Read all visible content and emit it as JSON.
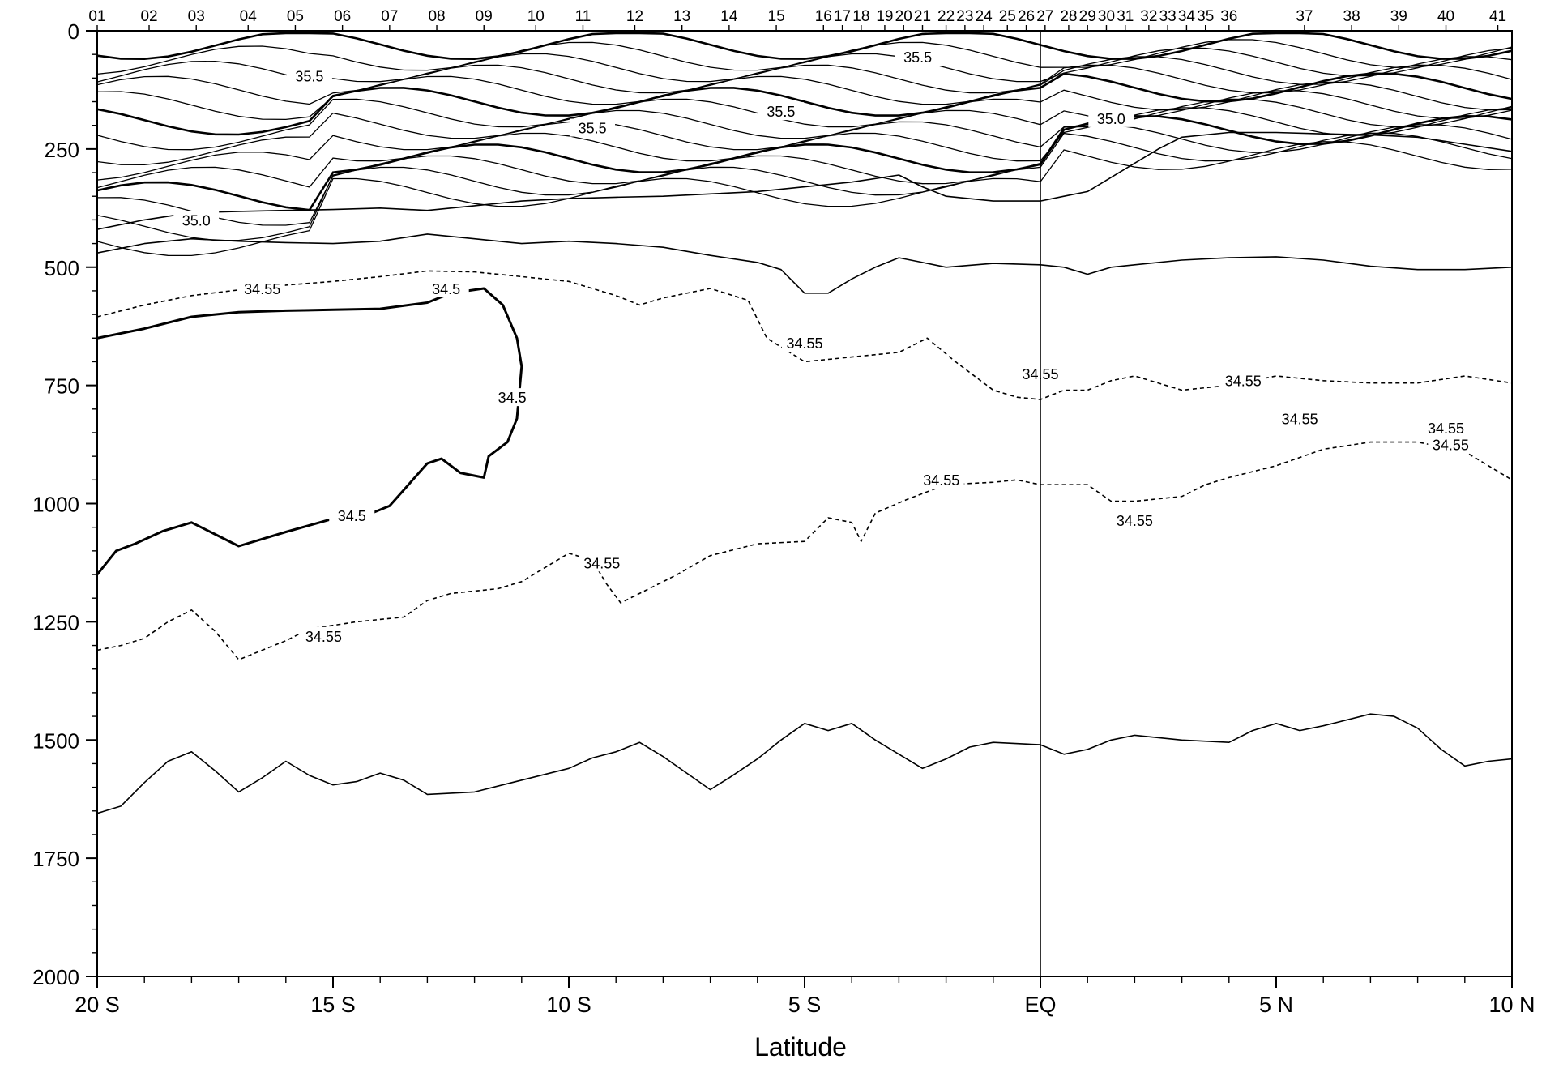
{
  "chart_data": {
    "type": "contour",
    "xlabel": "Latitude",
    "ylabel": "",
    "xlim": [
      -20,
      10
    ],
    "ylim": [
      2000,
      0
    ],
    "x_ticks": [
      {
        "value": -20,
        "label": "20 S"
      },
      {
        "value": -15,
        "label": "15 S"
      },
      {
        "value": -10,
        "label": "10 S"
      },
      {
        "value": -5,
        "label": "5 S"
      },
      {
        "value": 0,
        "label": "EQ"
      },
      {
        "value": 5,
        "label": "5 N"
      },
      {
        "value": 10,
        "label": "10 N"
      }
    ],
    "y_ticks": [
      0,
      250,
      500,
      750,
      1000,
      1250,
      1500,
      1750,
      2000
    ],
    "stations": [
      {
        "label": "01",
        "lat": -20.0
      },
      {
        "label": "02",
        "lat": -18.9
      },
      {
        "label": "03",
        "lat": -17.9
      },
      {
        "label": "04",
        "lat": -16.8
      },
      {
        "label": "05",
        "lat": -15.8
      },
      {
        "label": "06",
        "lat": -14.8
      },
      {
        "label": "07",
        "lat": -13.8
      },
      {
        "label": "08",
        "lat": -12.8
      },
      {
        "label": "09",
        "lat": -11.8
      },
      {
        "label": "10",
        "lat": -10.7
      },
      {
        "label": "11",
        "lat": -9.7
      },
      {
        "label": "12",
        "lat": -8.6
      },
      {
        "label": "13",
        "lat": -7.6
      },
      {
        "label": "14",
        "lat": -6.6
      },
      {
        "label": "15",
        "lat": -5.6
      },
      {
        "label": "16",
        "lat": -4.6
      },
      {
        "label": "17",
        "lat": -4.2
      },
      {
        "label": "18",
        "lat": -3.8
      },
      {
        "label": "19",
        "lat": -3.3
      },
      {
        "label": "20",
        "lat": -2.9
      },
      {
        "label": "21",
        "lat": -2.5
      },
      {
        "label": "22",
        "lat": -2.0
      },
      {
        "label": "23",
        "lat": -1.6
      },
      {
        "label": "24",
        "lat": -1.2
      },
      {
        "label": "25",
        "lat": -0.7
      },
      {
        "label": "26",
        "lat": -0.3
      },
      {
        "label": "27",
        "lat": 0.1
      },
      {
        "label": "28",
        "lat": 0.6
      },
      {
        "label": "29",
        "lat": 1.0
      },
      {
        "label": "30",
        "lat": 1.4
      },
      {
        "label": "31",
        "lat": 1.8
      },
      {
        "label": "32",
        "lat": 2.3
      },
      {
        "label": "33",
        "lat": 2.7
      },
      {
        "label": "34",
        "lat": 3.1
      },
      {
        "label": "35",
        "lat": 3.5
      },
      {
        "label": "36",
        "lat": 4.0
      },
      {
        "label": "37",
        "lat": 5.6
      },
      {
        "label": "38",
        "lat": 6.6
      },
      {
        "label": "39",
        "lat": 7.6
      },
      {
        "label": "40",
        "lat": 8.6
      },
      {
        "label": "41",
        "lat": 9.7
      }
    ],
    "contours": [
      {
        "level": "34.5",
        "style": "heavy",
        "points": [
          [
            -20,
            650
          ],
          [
            -19,
            630
          ],
          [
            -18,
            605
          ],
          [
            -17,
            595
          ],
          [
            -16,
            592
          ],
          [
            -15,
            590
          ],
          [
            -14,
            588
          ],
          [
            -13,
            575
          ],
          [
            -12.5,
            555
          ],
          [
            -11.8,
            545
          ],
          [
            -11.4,
            580
          ],
          [
            -11.1,
            650
          ],
          [
            -11,
            710
          ],
          [
            -11.1,
            820
          ],
          [
            -11.3,
            870
          ],
          [
            -11.7,
            900
          ],
          [
            -11.8,
            945
          ],
          [
            -12.3,
            935
          ],
          [
            -12.7,
            905
          ],
          [
            -13,
            915
          ],
          [
            -13.4,
            960
          ],
          [
            -13.8,
            1005
          ],
          [
            -14.3,
            1025
          ],
          [
            -15,
            1032
          ],
          [
            -16,
            1060
          ],
          [
            -17,
            1090
          ],
          [
            -17.5,
            1065
          ],
          [
            -18,
            1040
          ],
          [
            -18.6,
            1058
          ],
          [
            -19.2,
            1085
          ],
          [
            -19.6,
            1100
          ],
          [
            -20,
            1150
          ]
        ]
      },
      {
        "level": "34.55",
        "style": "dashed",
        "points": [
          [
            -20,
            605
          ],
          [
            -19,
            580
          ],
          [
            -18,
            560
          ],
          [
            -17,
            548
          ],
          [
            -16,
            538
          ],
          [
            -15,
            530
          ],
          [
            -14,
            520
          ],
          [
            -13,
            508
          ],
          [
            -12,
            510
          ],
          [
            -11,
            520
          ],
          [
            -10,
            530
          ],
          [
            -9,
            560
          ],
          [
            -8.5,
            580
          ],
          [
            -8,
            565
          ],
          [
            -7,
            545
          ],
          [
            -6.2,
            570
          ],
          [
            -5.8,
            650
          ],
          [
            -5,
            700
          ],
          [
            -4,
            690
          ],
          [
            -3,
            680
          ],
          [
            -2.4,
            650
          ],
          [
            -1.8,
            700
          ],
          [
            -1,
            760
          ],
          [
            -0.5,
            775
          ],
          [
            0,
            780
          ],
          [
            0.5,
            760
          ],
          [
            1,
            760
          ],
          [
            1.5,
            740
          ],
          [
            2,
            730
          ],
          [
            3,
            760
          ],
          [
            4,
            750
          ],
          [
            5,
            730
          ],
          [
            6,
            740
          ],
          [
            7,
            745
          ],
          [
            8,
            745
          ],
          [
            9,
            730
          ],
          [
            10,
            745
          ]
        ]
      },
      {
        "level": "34.55",
        "style": "dashed",
        "points": [
          [
            -20,
            1310
          ],
          [
            -19.5,
            1300
          ],
          [
            -19,
            1285
          ],
          [
            -18.5,
            1250
          ],
          [
            -18,
            1225
          ],
          [
            -17.5,
            1270
          ],
          [
            -17,
            1330
          ],
          [
            -16.5,
            1310
          ],
          [
            -16,
            1290
          ],
          [
            -15.5,
            1265
          ],
          [
            -14.5,
            1250
          ],
          [
            -13.5,
            1240
          ],
          [
            -13,
            1205
          ],
          [
            -12.5,
            1190
          ],
          [
            -11.5,
            1180
          ],
          [
            -11,
            1165
          ],
          [
            -10.5,
            1135
          ],
          [
            -10,
            1105
          ],
          [
            -9.5,
            1120
          ],
          [
            -9.2,
            1170
          ],
          [
            -8.9,
            1210
          ],
          [
            -8.5,
            1190
          ],
          [
            -7.7,
            1150
          ],
          [
            -7,
            1110
          ],
          [
            -6,
            1085
          ],
          [
            -5,
            1080
          ],
          [
            -4.5,
            1030
          ],
          [
            -4,
            1040
          ],
          [
            -3.8,
            1080
          ],
          [
            -3.5,
            1020
          ],
          [
            -2.8,
            990
          ],
          [
            -2,
            960
          ],
          [
            -1,
            955
          ],
          [
            -0.5,
            950
          ],
          [
            0,
            960
          ],
          [
            0.5,
            960
          ],
          [
            1,
            960
          ],
          [
            1.5,
            995
          ],
          [
            2,
            995
          ],
          [
            3,
            985
          ],
          [
            3.5,
            960
          ],
          [
            4,
            945
          ],
          [
            5,
            920
          ],
          [
            6,
            885
          ],
          [
            7,
            870
          ],
          [
            8,
            870
          ],
          [
            9,
            890
          ],
          [
            10,
            950
          ]
        ]
      },
      {
        "level": "",
        "style": "thin",
        "points": [
          [
            -20,
            1655
          ],
          [
            -19.5,
            1640
          ],
          [
            -19,
            1590
          ],
          [
            -18.5,
            1545
          ],
          [
            -18,
            1525
          ],
          [
            -17.5,
            1565
          ],
          [
            -17,
            1610
          ],
          [
            -16.5,
            1580
          ],
          [
            -16,
            1545
          ],
          [
            -15.5,
            1575
          ],
          [
            -15,
            1595
          ],
          [
            -14.5,
            1588
          ],
          [
            -14,
            1570
          ],
          [
            -13.5,
            1585
          ],
          [
            -13,
            1615
          ],
          [
            -12,
            1610
          ],
          [
            -11,
            1585
          ],
          [
            -10,
            1560
          ],
          [
            -9.5,
            1538
          ],
          [
            -9,
            1525
          ],
          [
            -8.5,
            1505
          ],
          [
            -8,
            1535
          ],
          [
            -7.5,
            1570
          ],
          [
            -7,
            1605
          ],
          [
            -6.6,
            1580
          ],
          [
            -6,
            1540
          ],
          [
            -5.5,
            1500
          ],
          [
            -5,
            1465
          ],
          [
            -4.5,
            1480
          ],
          [
            -4,
            1465
          ],
          [
            -3.5,
            1500
          ],
          [
            -3,
            1530
          ],
          [
            -2.5,
            1560
          ],
          [
            -2,
            1540
          ],
          [
            -1.5,
            1515
          ],
          [
            -1,
            1505
          ],
          [
            0,
            1510
          ],
          [
            0.5,
            1530
          ],
          [
            1,
            1520
          ],
          [
            1.5,
            1500
          ],
          [
            2,
            1490
          ],
          [
            3,
            1500
          ],
          [
            4,
            1505
          ],
          [
            4.5,
            1480
          ],
          [
            5,
            1465
          ],
          [
            5.5,
            1480
          ],
          [
            6,
            1470
          ],
          [
            7,
            1445
          ],
          [
            7.5,
            1450
          ],
          [
            8,
            1475
          ],
          [
            8.5,
            1520
          ],
          [
            9,
            1555
          ],
          [
            9.5,
            1545
          ],
          [
            10,
            1540
          ]
        ]
      },
      {
        "level": "",
        "style": "thin",
        "points": [
          [
            -20,
            420
          ],
          [
            -19,
            400
          ],
          [
            -18,
            385
          ],
          [
            -17,
            382
          ],
          [
            -16,
            380
          ],
          [
            -15,
            378
          ],
          [
            -14,
            375
          ],
          [
            -13,
            380
          ],
          [
            -12,
            370
          ],
          [
            -11,
            360
          ],
          [
            -10,
            355
          ],
          [
            -9,
            352
          ],
          [
            -8,
            350
          ],
          [
            -7,
            345
          ],
          [
            -6,
            340
          ],
          [
            -5,
            330
          ],
          [
            -4,
            320
          ],
          [
            -3,
            305
          ],
          [
            -2.5,
            330
          ],
          [
            -2,
            350
          ],
          [
            -1,
            360
          ],
          [
            0,
            360
          ],
          [
            0.5,
            350
          ],
          [
            1,
            340
          ],
          [
            1.5,
            310
          ],
          [
            2,
            280
          ],
          [
            2.5,
            250
          ],
          [
            3,
            225
          ],
          [
            4,
            215
          ],
          [
            5,
            215
          ],
          [
            6,
            218
          ],
          [
            7,
            220
          ],
          [
            8,
            225
          ],
          [
            9,
            240
          ],
          [
            10,
            255
          ]
        ]
      },
      {
        "level": "",
        "style": "thin",
        "points": [
          [
            -20,
            470
          ],
          [
            -19,
            450
          ],
          [
            -18,
            440
          ],
          [
            -17,
            445
          ],
          [
            -16,
            448
          ],
          [
            -15,
            450
          ],
          [
            -14,
            445
          ],
          [
            -13,
            430
          ],
          [
            -12,
            440
          ],
          [
            -11,
            450
          ],
          [
            -10,
            445
          ],
          [
            -9,
            450
          ],
          [
            -8,
            458
          ],
          [
            -7,
            475
          ],
          [
            -6,
            490
          ],
          [
            -5.5,
            505
          ],
          [
            -5,
            555
          ],
          [
            -4.5,
            555
          ],
          [
            -4,
            525
          ],
          [
            -3.5,
            500
          ],
          [
            -3,
            480
          ],
          [
            -2.5,
            490
          ],
          [
            -2,
            500
          ],
          [
            -1,
            492
          ],
          [
            0,
            495
          ],
          [
            0.5,
            500
          ],
          [
            1,
            515
          ],
          [
            1.5,
            500
          ],
          [
            2,
            495
          ],
          [
            3,
            485
          ],
          [
            4,
            480
          ],
          [
            5,
            478
          ],
          [
            6,
            485
          ],
          [
            7,
            498
          ],
          [
            8,
            505
          ],
          [
            9,
            505
          ],
          [
            10,
            500
          ]
        ]
      }
    ],
    "contour_labels": [
      {
        "text": "35.5",
        "lat": -15.5,
        "depth": 100
      },
      {
        "text": "35.5",
        "lat": -9.5,
        "depth": 210
      },
      {
        "text": "35.5",
        "lat": -5.5,
        "depth": 175
      },
      {
        "text": "35.5",
        "lat": -2.6,
        "depth": 60
      },
      {
        "text": "35.0",
        "lat": 1.5,
        "depth": 190
      },
      {
        "text": "35.0",
        "lat": -17.9,
        "depth": 405
      },
      {
        "text": "34.55",
        "lat": -16.5,
        "depth": 550
      },
      {
        "text": "34.5",
        "lat": -12.6,
        "depth": 550
      },
      {
        "text": "34.5",
        "lat": -11.2,
        "depth": 780
      },
      {
        "text": "34.5",
        "lat": -14.6,
        "depth": 1030
      },
      {
        "text": "34.55",
        "lat": -5.0,
        "depth": 665
      },
      {
        "text": "34.55",
        "lat": 0.0,
        "depth": 730
      },
      {
        "text": "34.55",
        "lat": 4.3,
        "depth": 745
      },
      {
        "text": "34.55",
        "lat": 5.5,
        "depth": 825
      },
      {
        "text": "34.55",
        "lat": 8.6,
        "depth": 845
      },
      {
        "text": "34.55",
        "lat": 8.7,
        "depth": 880
      },
      {
        "text": "34.55",
        "lat": -2.1,
        "depth": 955
      },
      {
        "text": "34.55",
        "lat": 2.0,
        "depth": 1040
      },
      {
        "text": "34.55",
        "lat": -9.3,
        "depth": 1130
      },
      {
        "text": "34.55",
        "lat": -15.2,
        "depth": 1285
      }
    ],
    "equator_line_lat": 0,
    "grid": false
  }
}
